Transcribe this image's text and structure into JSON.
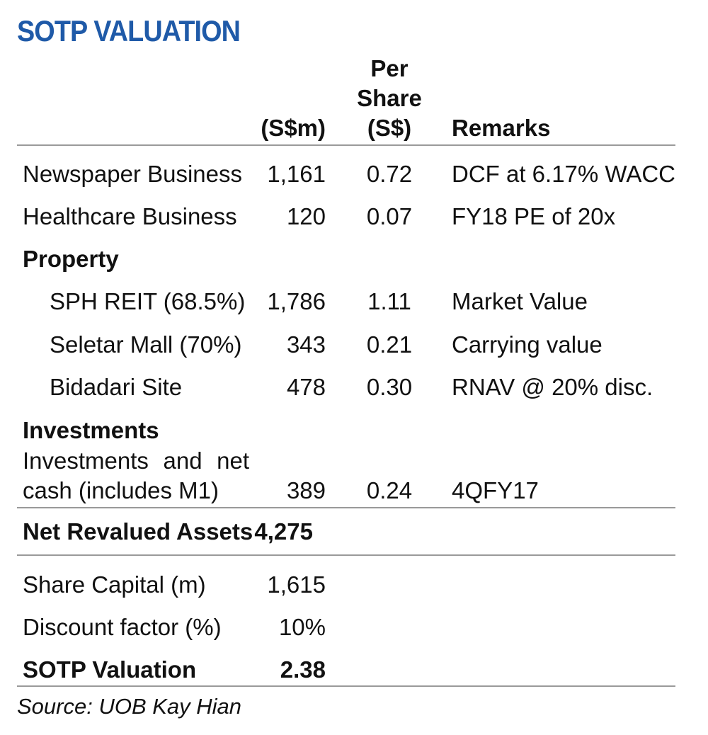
{
  "title": "SOTP VALUATION",
  "headers": {
    "amount": "(S$m)",
    "per_share_line1": "Per",
    "per_share_line2": "Share",
    "per_share_line3": "(S$)",
    "remarks": "Remarks"
  },
  "rows": {
    "newspaper": {
      "label": "Newspaper Business",
      "amount": "1,161",
      "per_share": "0.72",
      "remarks": "DCF at 6.17% WACC"
    },
    "healthcare": {
      "label": "Healthcare Business",
      "amount": "120",
      "per_share": "0.07",
      "remarks": "FY18 PE of 20x"
    },
    "property_heading": "Property",
    "sph_reit": {
      "label": "SPH REIT (68.5%)",
      "amount": "1,786",
      "per_share": "1.11",
      "remarks": "Market Value"
    },
    "seletar": {
      "label": "Seletar Mall (70%)",
      "amount": "343",
      "per_share": "0.21",
      "remarks": "Carrying value"
    },
    "bidadari": {
      "label": "Bidadari Site",
      "amount": "478",
      "per_share": "0.30",
      "remarks": "RNAV @ 20% disc."
    },
    "investments_heading": "Investments",
    "investments": {
      "label_word1": "Investments",
      "label_word2": "and",
      "label_word3": "net",
      "label_line2": "cash (includes M1)",
      "amount": "389",
      "per_share": "0.24",
      "remarks": "4QFY17"
    },
    "net_revalued": {
      "label": "Net Revalued Assets",
      "amount": "4,275"
    },
    "share_capital": {
      "label": "Share Capital (m)",
      "amount": "1,615"
    },
    "discount": {
      "label": "Discount factor (%)",
      "amount": "10%"
    },
    "sotp": {
      "label": "SOTP Valuation",
      "amount": "2.38"
    }
  },
  "source": "Source: UOB Kay Hian"
}
